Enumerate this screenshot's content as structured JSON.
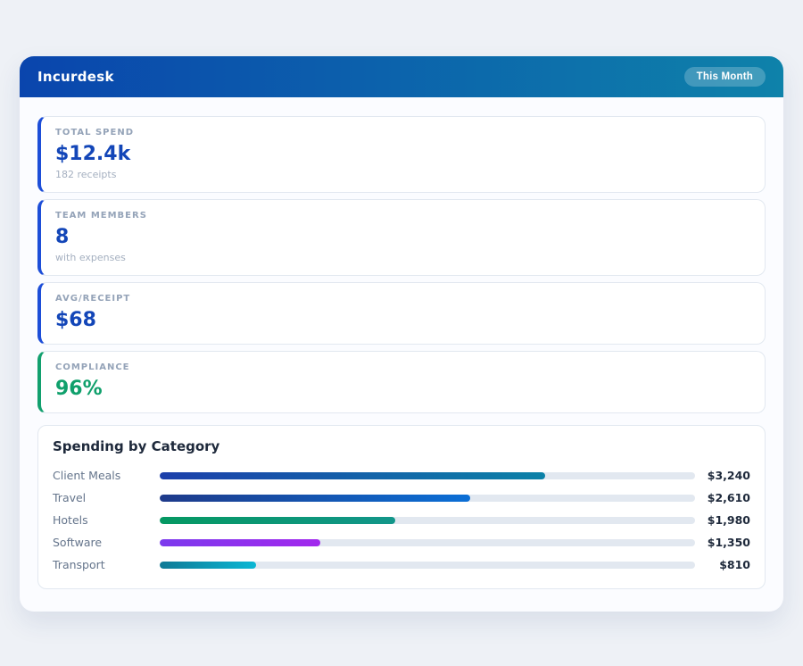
{
  "page": {
    "title": "Incurdesk",
    "period_badge": "This Month"
  },
  "theme": {
    "page_bg": "#eef1f6",
    "panel_bg": "#fbfcff",
    "header_gradient_start": "#0a45ad",
    "header_gradient_end": "#0e82aa",
    "card_border": "#e2e8f0",
    "track_color": "#e2e8f0",
    "blue_accent": "#1d4ed8",
    "green_accent": "#12a06e"
  },
  "stats": [
    {
      "label": "TOTAL SPEND",
      "value": "$12.4k",
      "sub": "182 receipts",
      "accent": "#1d4ed8",
      "value_color": "#1346b8"
    },
    {
      "label": "TEAM MEMBERS",
      "value": "8",
      "sub": "with expenses",
      "accent": "#1d4ed8",
      "value_color": "#1346b8"
    },
    {
      "label": "AVG/RECEIPT",
      "value": "$68",
      "sub": "",
      "accent": "#1d4ed8",
      "value_color": "#1346b8"
    },
    {
      "label": "COMPLIANCE",
      "value": "96%",
      "sub": "",
      "accent": "#12a06e",
      "value_color": "#10a06c"
    }
  ],
  "chart_data": {
    "type": "bar",
    "orientation": "horizontal",
    "title": "Spending by Category",
    "categories": [
      "Client Meals",
      "Travel",
      "Hotels",
      "Software",
      "Transport"
    ],
    "values": [
      3240,
      2610,
      1980,
      1350,
      810
    ],
    "value_labels": [
      "$3,240",
      "$2,610",
      "$1,980",
      "$1,350",
      "$810"
    ],
    "bar_scale_max": 4500,
    "grid": false,
    "legend": false,
    "bar_colors": [
      [
        "#1c3faa",
        "#0c82a8"
      ],
      [
        "#1e3a8a",
        "#0b6fd6"
      ],
      [
        "#059862",
        "#12968a"
      ],
      [
        "#7c3aed",
        "#a228ed"
      ],
      [
        "#107a96",
        "#0bb7d4"
      ]
    ]
  }
}
